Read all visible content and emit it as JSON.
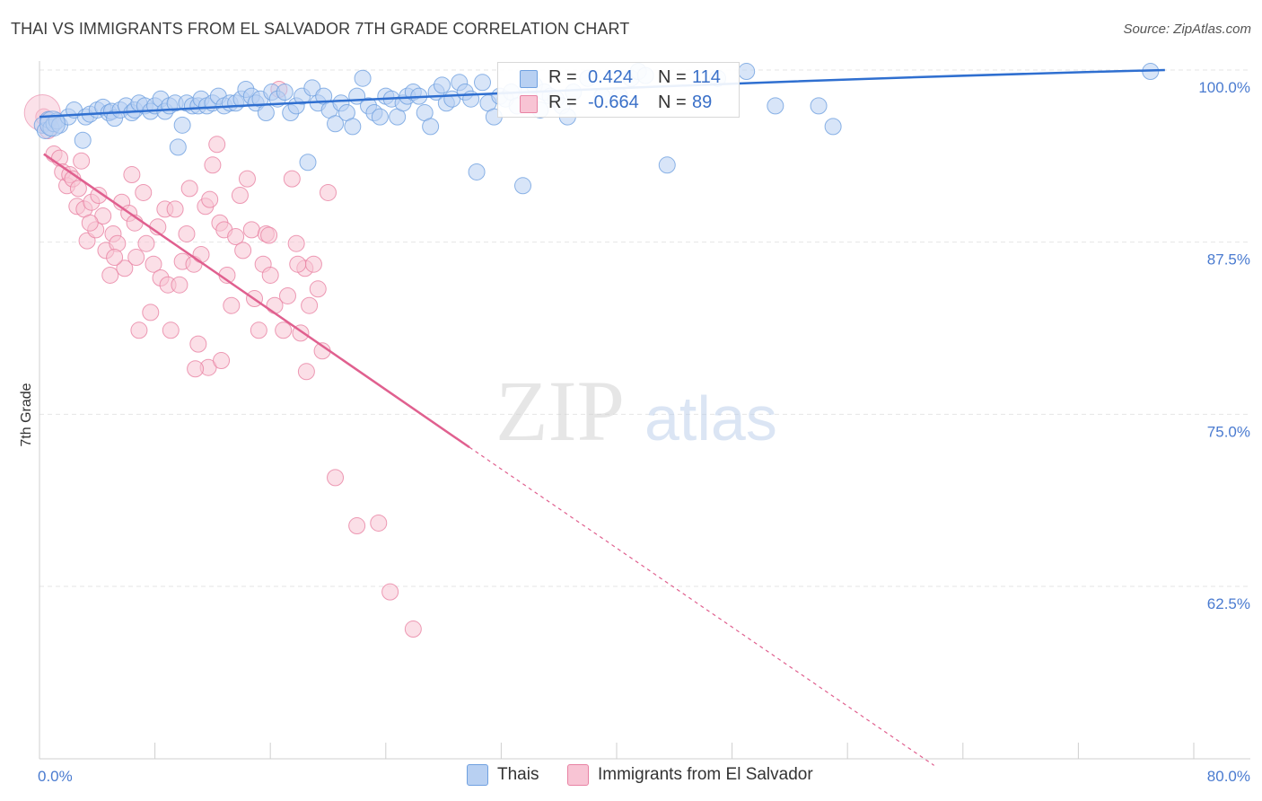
{
  "title": "THAI VS IMMIGRANTS FROM EL SALVADOR 7TH GRADE CORRELATION CHART",
  "source": "Source: ZipAtlas.com",
  "watermark": {
    "zip": "ZIP",
    "atlas": "atlas"
  },
  "legend": {
    "r_label": "R =",
    "n_label": "N =",
    "series": [
      {
        "name": "Thais",
        "r": "0.424",
        "n": "114",
        "color": "#6fa0e0",
        "fill": "#b8d0f2"
      },
      {
        "name": "Immigrants from El Salvador",
        "r": "-0.664",
        "n": "89",
        "color": "#e882a3",
        "fill": "#f8c4d4"
      }
    ]
  },
  "colors": {
    "blue_line": "#2f6fd0",
    "pink_line": "#e0608f",
    "tick_text": "#4a7bd0",
    "grid": "#e6e6e6"
  },
  "chart_data": {
    "type": "scatter",
    "title": "THAI VS IMMIGRANTS FROM EL SALVADOR 7TH GRADE CORRELATION CHART",
    "xlabel": "",
    "ylabel": "7th Grade",
    "xlim": [
      0,
      80
    ],
    "ylim": [
      50,
      100
    ],
    "x_tick_labels": [
      "0.0%",
      "80.0%"
    ],
    "y_ticks": [
      62.5,
      75.0,
      87.5,
      100.0
    ],
    "y_tick_labels": [
      "62.5%",
      "75.0%",
      "87.5%",
      "100.0%"
    ],
    "series": [
      {
        "name": "Thais",
        "trend": {
          "x": [
            0,
            78
          ],
          "y": [
            96.6,
            100.0
          ]
        },
        "points": [
          [
            0.2,
            96.0
          ],
          [
            0.4,
            95.6
          ],
          [
            0.6,
            96.4
          ],
          [
            0.8,
            95.8
          ],
          [
            1.0,
            96.1
          ],
          [
            1.2,
            96.3
          ],
          [
            1.4,
            96.0
          ],
          [
            2.0,
            96.6
          ],
          [
            2.4,
            97.1
          ],
          [
            3.0,
            94.9
          ],
          [
            3.2,
            96.6
          ],
          [
            3.5,
            96.8
          ],
          [
            4.0,
            97.1
          ],
          [
            4.4,
            97.3
          ],
          [
            4.8,
            96.9
          ],
          [
            5.0,
            97.0
          ],
          [
            5.2,
            96.5
          ],
          [
            5.6,
            97.1
          ],
          [
            6.0,
            97.4
          ],
          [
            6.4,
            96.9
          ],
          [
            6.6,
            97.1
          ],
          [
            6.9,
            97.6
          ],
          [
            7.3,
            97.4
          ],
          [
            7.7,
            97.0
          ],
          [
            8.0,
            97.4
          ],
          [
            8.4,
            97.9
          ],
          [
            8.7,
            97.0
          ],
          [
            9.0,
            97.4
          ],
          [
            9.4,
            97.6
          ],
          [
            9.6,
            94.4
          ],
          [
            9.9,
            96.0
          ],
          [
            10.2,
            97.6
          ],
          [
            10.6,
            97.4
          ],
          [
            11.0,
            97.4
          ],
          [
            11.2,
            97.9
          ],
          [
            11.6,
            97.4
          ],
          [
            12.0,
            97.6
          ],
          [
            12.4,
            98.1
          ],
          [
            12.8,
            97.4
          ],
          [
            13.2,
            97.6
          ],
          [
            13.6,
            97.6
          ],
          [
            14.0,
            97.9
          ],
          [
            14.3,
            98.6
          ],
          [
            14.7,
            98.1
          ],
          [
            15.0,
            97.6
          ],
          [
            15.3,
            97.9
          ],
          [
            15.7,
            96.9
          ],
          [
            16.1,
            98.4
          ],
          [
            16.5,
            97.9
          ],
          [
            17.0,
            98.4
          ],
          [
            17.4,
            96.9
          ],
          [
            17.8,
            97.4
          ],
          [
            18.2,
            98.1
          ],
          [
            18.6,
            93.3
          ],
          [
            18.9,
            98.7
          ],
          [
            19.3,
            97.6
          ],
          [
            19.7,
            98.1
          ],
          [
            20.1,
            97.1
          ],
          [
            20.5,
            96.1
          ],
          [
            20.9,
            97.6
          ],
          [
            21.3,
            96.9
          ],
          [
            21.7,
            95.9
          ],
          [
            22.0,
            98.1
          ],
          [
            22.4,
            99.4
          ],
          [
            22.8,
            97.4
          ],
          [
            23.2,
            96.9
          ],
          [
            23.6,
            96.6
          ],
          [
            24.0,
            98.1
          ],
          [
            24.4,
            97.9
          ],
          [
            24.8,
            96.6
          ],
          [
            25.2,
            97.6
          ],
          [
            25.5,
            98.1
          ],
          [
            25.9,
            98.4
          ],
          [
            26.3,
            98.1
          ],
          [
            26.7,
            96.9
          ],
          [
            27.1,
            95.9
          ],
          [
            27.5,
            98.4
          ],
          [
            27.9,
            98.9
          ],
          [
            28.2,
            97.6
          ],
          [
            28.6,
            97.9
          ],
          [
            29.1,
            99.1
          ],
          [
            29.5,
            98.4
          ],
          [
            29.9,
            97.9
          ],
          [
            30.3,
            92.6
          ],
          [
            30.7,
            99.1
          ],
          [
            31.1,
            97.6
          ],
          [
            31.5,
            96.6
          ],
          [
            31.9,
            98.1
          ],
          [
            32.3,
            97.9
          ],
          [
            32.7,
            98.4
          ],
          [
            33.1,
            97.4
          ],
          [
            33.5,
            91.6
          ],
          [
            33.9,
            98.4
          ],
          [
            34.3,
            98.9
          ],
          [
            34.7,
            97.1
          ],
          [
            35.0,
            98.4
          ],
          [
            35.4,
            98.1
          ],
          [
            35.8,
            97.9
          ],
          [
            36.2,
            97.4
          ],
          [
            36.6,
            96.6
          ],
          [
            37.0,
            98.4
          ],
          [
            38.0,
            99.4
          ],
          [
            39.0,
            98.1
          ],
          [
            40.2,
            98.1
          ],
          [
            41.0,
            99.4
          ],
          [
            41.5,
            99.9
          ],
          [
            42.0,
            99.6
          ],
          [
            43.5,
            93.1
          ],
          [
            47.0,
            99.4
          ],
          [
            49.0,
            99.9
          ],
          [
            51.0,
            97.4
          ],
          [
            54.0,
            97.4
          ],
          [
            55.0,
            95.9
          ],
          [
            77.0,
            99.9
          ]
        ]
      },
      {
        "name": "Immigrants from El Salvador",
        "trend": {
          "x": [
            0.3,
            29.8
          ],
          "y": [
            93.9,
            72.6
          ]
        },
        "trend_dashed": {
          "x": [
            29.8,
            62.0
          ],
          "y": [
            72.6,
            49.5
          ]
        },
        "points": [
          [
            0.3,
            96.6
          ],
          [
            0.6,
            95.6
          ],
          [
            1.0,
            93.9
          ],
          [
            1.4,
            93.6
          ],
          [
            1.6,
            92.6
          ],
          [
            1.9,
            91.6
          ],
          [
            2.1,
            92.4
          ],
          [
            2.3,
            92.1
          ],
          [
            2.6,
            90.1
          ],
          [
            2.9,
            93.4
          ],
          [
            3.1,
            89.9
          ],
          [
            3.3,
            87.6
          ],
          [
            3.6,
            90.4
          ],
          [
            3.9,
            88.4
          ],
          [
            4.1,
            90.9
          ],
          [
            4.4,
            89.4
          ],
          [
            4.6,
            86.9
          ],
          [
            4.9,
            85.1
          ],
          [
            5.1,
            88.1
          ],
          [
            5.4,
            87.4
          ],
          [
            5.7,
            90.4
          ],
          [
            5.9,
            85.6
          ],
          [
            6.2,
            89.6
          ],
          [
            6.4,
            92.4
          ],
          [
            6.7,
            86.4
          ],
          [
            6.9,
            81.1
          ],
          [
            7.2,
            91.1
          ],
          [
            7.4,
            87.4
          ],
          [
            7.7,
            82.4
          ],
          [
            7.9,
            85.9
          ],
          [
            8.2,
            88.6
          ],
          [
            8.4,
            84.9
          ],
          [
            8.7,
            89.9
          ],
          [
            8.9,
            84.4
          ],
          [
            9.1,
            81.1
          ],
          [
            9.4,
            89.9
          ],
          [
            9.7,
            84.4
          ],
          [
            9.9,
            86.1
          ],
          [
            10.2,
            88.1
          ],
          [
            10.4,
            91.4
          ],
          [
            10.7,
            85.9
          ],
          [
            11.0,
            80.1
          ],
          [
            11.2,
            86.6
          ],
          [
            11.5,
            90.1
          ],
          [
            11.7,
            78.4
          ],
          [
            12.0,
            93.1
          ],
          [
            12.3,
            94.6
          ],
          [
            12.5,
            88.9
          ],
          [
            12.8,
            88.4
          ],
          [
            13.0,
            85.1
          ],
          [
            13.3,
            82.9
          ],
          [
            13.6,
            87.9
          ],
          [
            13.9,
            90.9
          ],
          [
            14.1,
            86.9
          ],
          [
            14.4,
            92.1
          ],
          [
            14.7,
            88.4
          ],
          [
            14.9,
            83.4
          ],
          [
            15.2,
            81.1
          ],
          [
            15.5,
            85.9
          ],
          [
            15.7,
            88.1
          ],
          [
            16.0,
            85.1
          ],
          [
            16.3,
            82.9
          ],
          [
            16.6,
            98.6
          ],
          [
            16.9,
            81.1
          ],
          [
            17.2,
            83.6
          ],
          [
            17.5,
            92.1
          ],
          [
            17.8,
            87.4
          ],
          [
            18.1,
            80.9
          ],
          [
            18.4,
            85.6
          ],
          [
            18.7,
            82.9
          ],
          [
            19.0,
            85.9
          ],
          [
            19.3,
            84.1
          ],
          [
            19.6,
            79.6
          ],
          [
            20.0,
            91.1
          ],
          [
            20.5,
            70.4
          ],
          [
            22.0,
            66.9
          ],
          [
            23.5,
            67.1
          ],
          [
            24.3,
            62.1
          ],
          [
            25.9,
            59.4
          ],
          [
            17.9,
            85.9
          ],
          [
            18.5,
            78.1
          ],
          [
            12.6,
            78.9
          ],
          [
            10.8,
            78.3
          ],
          [
            6.6,
            88.9
          ],
          [
            5.2,
            86.4
          ],
          [
            3.5,
            88.9
          ],
          [
            2.7,
            91.4
          ],
          [
            11.8,
            90.6
          ],
          [
            15.9,
            88.0
          ]
        ]
      }
    ]
  }
}
